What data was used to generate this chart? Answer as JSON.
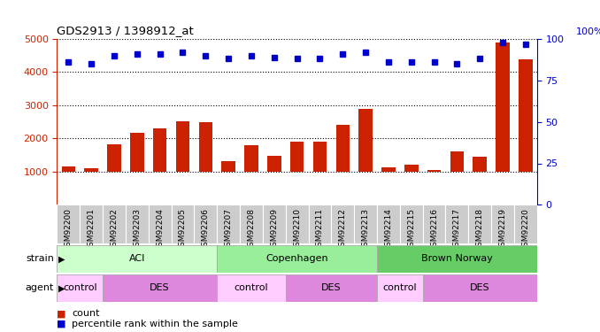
{
  "title": "GDS2913 / 1398912_at",
  "samples": [
    "GSM92200",
    "GSM92201",
    "GSM92202",
    "GSM92203",
    "GSM92204",
    "GSM92205",
    "GSM92206",
    "GSM92207",
    "GSM92208",
    "GSM92209",
    "GSM92210",
    "GSM92211",
    "GSM92212",
    "GSM92213",
    "GSM92214",
    "GSM92215",
    "GSM92216",
    "GSM92217",
    "GSM92218",
    "GSM92219",
    "GSM92220"
  ],
  "counts": [
    1150,
    1100,
    1820,
    2180,
    2300,
    2520,
    2490,
    1310,
    1790,
    1470,
    1910,
    1910,
    2420,
    2900,
    1130,
    1210,
    1050,
    1620,
    1460,
    4900,
    4380
  ],
  "percentiles": [
    86,
    85,
    90,
    91,
    91,
    92,
    90,
    88,
    90,
    89,
    88,
    88,
    91,
    92,
    86,
    86,
    86,
    85,
    88,
    98,
    97
  ],
  "ylim_left": [
    0,
    5000
  ],
  "ylim_right": [
    0,
    100
  ],
  "yticks_left": [
    1000,
    2000,
    3000,
    4000,
    5000
  ],
  "yticks_right": [
    0,
    25,
    50,
    75,
    100
  ],
  "bar_color": "#cc2200",
  "dot_color": "#0000cc",
  "bar_bottom": 1000,
  "strain_groups": [
    {
      "label": "ACI",
      "start": 0,
      "end": 6,
      "color": "#ccffcc"
    },
    {
      "label": "Copenhagen",
      "start": 7,
      "end": 13,
      "color": "#99ee99"
    },
    {
      "label": "Brown Norway",
      "start": 14,
      "end": 20,
      "color": "#66cc66"
    }
  ],
  "agent_groups": [
    {
      "label": "control",
      "start": 0,
      "end": 1,
      "color": "#ffccff"
    },
    {
      "label": "DES",
      "start": 2,
      "end": 6,
      "color": "#dd88dd"
    },
    {
      "label": "control",
      "start": 7,
      "end": 9,
      "color": "#ffccff"
    },
    {
      "label": "DES",
      "start": 10,
      "end": 13,
      "color": "#dd88dd"
    },
    {
      "label": "control",
      "start": 14,
      "end": 15,
      "color": "#ffccff"
    },
    {
      "label": "DES",
      "start": 16,
      "end": 20,
      "color": "#dd88dd"
    }
  ],
  "legend_count_color": "#cc2200",
  "legend_dot_color": "#0000cc",
  "title_color": "black",
  "left_axis_color": "#cc2200",
  "right_axis_color": "#0000cc",
  "tick_bg_color": "#cccccc",
  "right_axis_label": "100%"
}
